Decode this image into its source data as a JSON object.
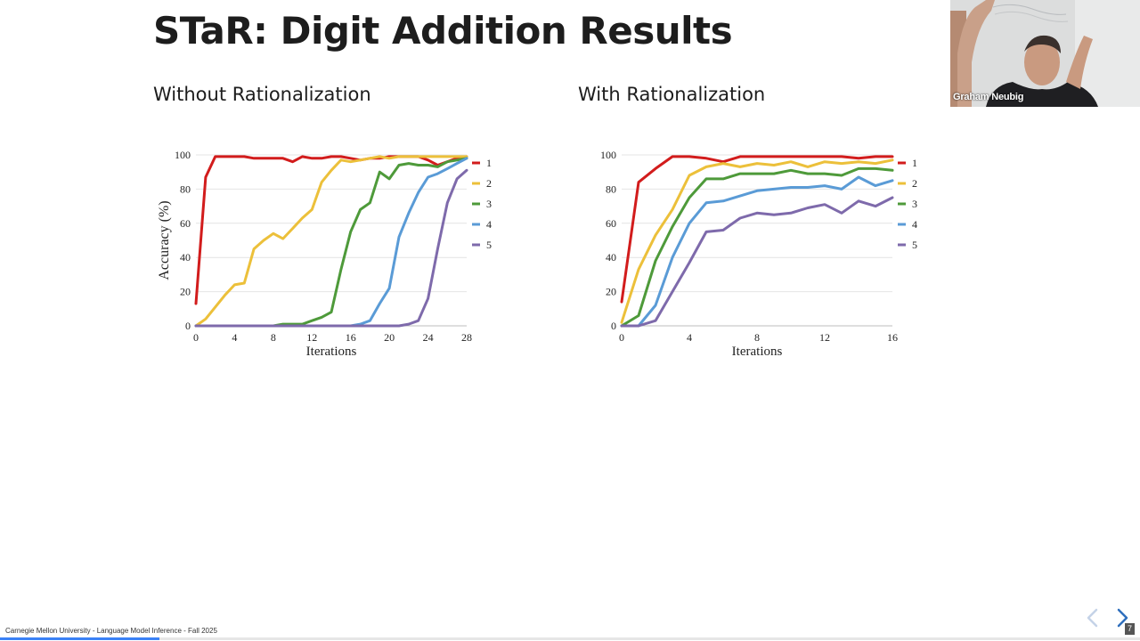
{
  "slide": {
    "title": "STaR: Digit Addition Results",
    "footer": "Carnegie Mellon University - Language Model Inference - Fall 2025",
    "page_number": "7",
    "progress": 0.14
  },
  "webcam": {
    "speaker_name": "Graham Neubig"
  },
  "nav": {
    "prev_icon": "chevron-left-icon",
    "next_icon": "chevron-right-icon"
  },
  "colors": {
    "d1": "#d21c1c",
    "d2": "#ecc03a",
    "d3": "#4e9a3a",
    "d4": "#5a9bd6",
    "d5": "#7e6aab",
    "accent": "#3b82f6"
  },
  "panels": {
    "left": {
      "heading": "Without Rationalization"
    },
    "right": {
      "heading": "With Rationalization"
    }
  },
  "chart_data": [
    {
      "type": "line",
      "ylabel": "Accuracy (%)",
      "xlabel": "Iterations",
      "xlim": [
        0,
        28
      ],
      "ylim": [
        0,
        100
      ],
      "xticks": [
        0,
        4,
        8,
        12,
        16,
        20,
        24,
        28
      ],
      "yticks": [
        0,
        20,
        40,
        60,
        80,
        100
      ],
      "grid": true,
      "legend_position": "right",
      "x": [
        0,
        1,
        2,
        3,
        4,
        5,
        6,
        7,
        8,
        9,
        10,
        11,
        12,
        13,
        14,
        15,
        16,
        17,
        18,
        19,
        20,
        21,
        22,
        23,
        24,
        25,
        26,
        27,
        28
      ],
      "series": [
        {
          "name": "1",
          "values": [
            13,
            87,
            99,
            99,
            99,
            99,
            98,
            98,
            98,
            98,
            96,
            99,
            98,
            98,
            99,
            99,
            98,
            97,
            98,
            98,
            99,
            99,
            99,
            99,
            97,
            94,
            96,
            98,
            99
          ]
        },
        {
          "name": "2",
          "values": [
            0,
            4,
            11,
            18,
            24,
            25,
            45,
            50,
            54,
            51,
            57,
            63,
            68,
            84,
            91,
            97,
            96,
            97,
            98,
            99,
            98,
            99,
            99,
            99,
            99,
            99,
            99,
            99,
            99
          ]
        },
        {
          "name": "3",
          "values": [
            0,
            0,
            0,
            0,
            0,
            0,
            0,
            0,
            0,
            1,
            1,
            1,
            3,
            5,
            8,
            33,
            55,
            68,
            72,
            90,
            86,
            94,
            95,
            94,
            94,
            93,
            96,
            97,
            98
          ]
        },
        {
          "name": "4",
          "values": [
            0,
            0,
            0,
            0,
            0,
            0,
            0,
            0,
            0,
            0,
            0,
            0,
            0,
            0,
            0,
            0,
            0,
            1,
            3,
            13,
            22,
            52,
            66,
            78,
            87,
            89,
            92,
            95,
            98
          ]
        },
        {
          "name": "5",
          "values": [
            0,
            0,
            0,
            0,
            0,
            0,
            0,
            0,
            0,
            0,
            0,
            0,
            0,
            0,
            0,
            0,
            0,
            0,
            0,
            0,
            0,
            0,
            1,
            3,
            16,
            45,
            72,
            86,
            91
          ]
        }
      ]
    },
    {
      "type": "line",
      "ylabel": "",
      "xlabel": "Iterations",
      "xlim": [
        0,
        16
      ],
      "ylim": [
        0,
        100
      ],
      "xticks": [
        0,
        4,
        8,
        12,
        16
      ],
      "yticks": [
        0,
        20,
        40,
        60,
        80,
        100
      ],
      "grid": true,
      "legend_position": "right",
      "x": [
        0,
        1,
        2,
        3,
        4,
        5,
        6,
        7,
        8,
        9,
        10,
        11,
        12,
        13,
        14,
        15,
        16
      ],
      "series": [
        {
          "name": "1",
          "values": [
            14,
            84,
            92,
            99,
            99,
            98,
            96,
            99,
            99,
            99,
            99,
            99,
            99,
            99,
            98,
            99,
            99
          ]
        },
        {
          "name": "2",
          "values": [
            2,
            33,
            53,
            68,
            88,
            93,
            95,
            93,
            95,
            94,
            96,
            93,
            96,
            95,
            96,
            95,
            97
          ]
        },
        {
          "name": "3",
          "values": [
            0,
            6,
            38,
            58,
            75,
            86,
            86,
            89,
            89,
            89,
            91,
            89,
            89,
            88,
            92,
            92,
            91
          ]
        },
        {
          "name": "4",
          "values": [
            0,
            0,
            12,
            40,
            60,
            72,
            73,
            76,
            79,
            80,
            81,
            81,
            82,
            80,
            87,
            82,
            85
          ]
        },
        {
          "name": "5",
          "values": [
            0,
            0,
            3,
            20,
            37,
            55,
            56,
            63,
            66,
            65,
            66,
            69,
            71,
            66,
            73,
            70,
            75
          ]
        }
      ]
    }
  ]
}
